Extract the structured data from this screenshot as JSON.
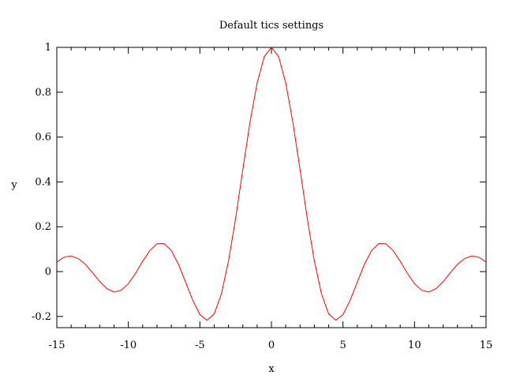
{
  "chart_data": {
    "type": "line",
    "title": "Default tics settings",
    "xlabel": "x",
    "ylabel": "y",
    "xlim": [
      -15,
      15
    ],
    "ylim": [
      -0.25,
      1.0
    ],
    "xticks": [
      -15,
      -10,
      -5,
      0,
      5,
      10,
      15
    ],
    "xtick_labels": [
      "-15",
      "-10",
      "-5",
      "0",
      "5",
      "10",
      "15"
    ],
    "yticks": [
      -0.2,
      0,
      0.2,
      0.4,
      0.6,
      0.8,
      1
    ],
    "ytick_labels": [
      "-0.2",
      "0",
      "0.2",
      "0.4",
      "0.6",
      "0.8",
      "1"
    ],
    "grid": false,
    "legend": "none",
    "series": [
      {
        "color": "#ff0000",
        "x": [
          -15,
          -14.5,
          -14,
          -13.5,
          -13,
          -12.5,
          -12,
          -11.5,
          -11,
          -10.5,
          -10,
          -9.5,
          -9,
          -8.5,
          -8,
          -7.5,
          -7,
          -6.5,
          -6,
          -5.5,
          -5,
          -4.5,
          -4,
          -3.5,
          -3,
          -2.5,
          -2,
          -1.5,
          -1,
          -0.5,
          0,
          0.5,
          1,
          1.5,
          2,
          2.5,
          3,
          3.5,
          4,
          4.5,
          5,
          5.5,
          6,
          6.5,
          7,
          7.5,
          8,
          8.5,
          9,
          9.5,
          10,
          10.5,
          11,
          11.5,
          12,
          12.5,
          13,
          13.5,
          14,
          14.5,
          15
        ],
        "y": [
          0.043,
          0.064,
          0.07,
          0.058,
          0.032,
          -0.005,
          -0.045,
          -0.076,
          -0.091,
          -0.083,
          -0.054,
          -0.008,
          0.046,
          0.094,
          0.124,
          0.125,
          0.094,
          0.033,
          -0.047,
          -0.128,
          -0.192,
          -0.217,
          -0.189,
          -0.1,
          0.047,
          0.239,
          0.455,
          0.665,
          0.841,
          0.959,
          1.0,
          0.959,
          0.841,
          0.665,
          0.455,
          0.239,
          0.047,
          -0.1,
          -0.189,
          -0.217,
          -0.192,
          -0.128,
          -0.047,
          0.033,
          0.094,
          0.125,
          0.124,
          0.094,
          0.046,
          -0.008,
          -0.054,
          -0.083,
          -0.091,
          -0.076,
          -0.045,
          -0.005,
          0.032,
          0.058,
          0.07,
          0.064,
          0.043
        ]
      }
    ]
  }
}
